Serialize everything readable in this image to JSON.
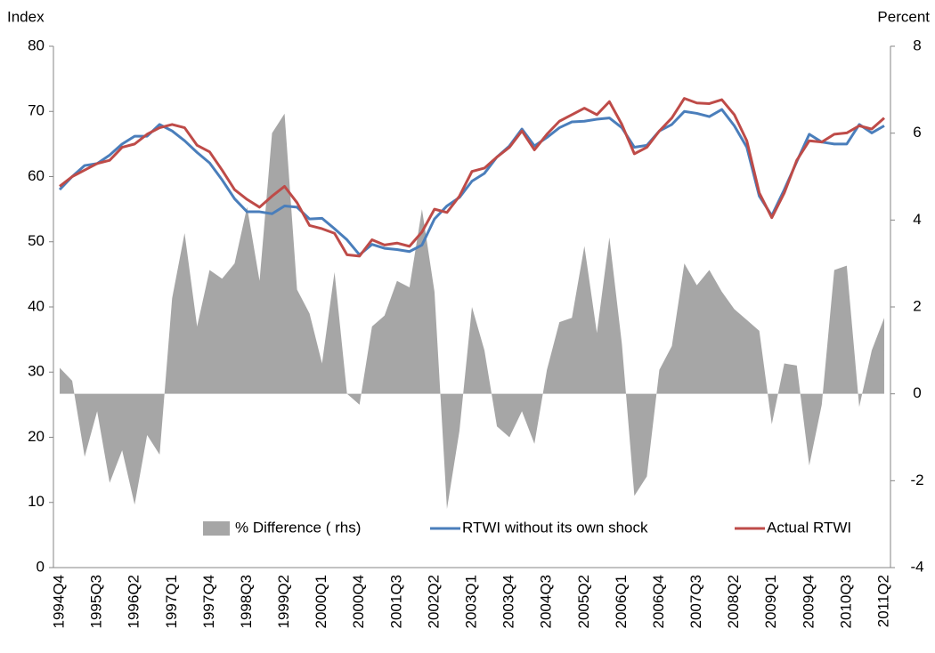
{
  "chart_data": {
    "type": "line",
    "ylabel": "Index",
    "y2label": "Percent",
    "categories": [
      "1994Q4",
      null,
      null,
      "1995Q3",
      null,
      null,
      "1996Q2",
      null,
      null,
      "1997Q1",
      null,
      null,
      "1997Q4",
      null,
      null,
      "1998Q3",
      null,
      null,
      "1999Q2",
      null,
      null,
      "2000Q1",
      null,
      null,
      "2000Q4",
      null,
      null,
      "2001Q3",
      null,
      null,
      "2002Q2",
      null,
      null,
      "2003Q1",
      null,
      null,
      "2003Q4",
      null,
      null,
      "2004Q3",
      null,
      null,
      "2005Q2",
      null,
      null,
      "2006Q1",
      null,
      null,
      "2006Q4",
      null,
      null,
      "2007Q3",
      null,
      null,
      "2008Q2",
      null,
      null,
      "2009Q1",
      null,
      null,
      "2009Q4",
      null,
      null,
      "2010Q3",
      null,
      null,
      "2011Q2"
    ],
    "series": [
      {
        "name": "% Difference ( rhs)",
        "type": "area",
        "axis": "y2",
        "color": "#a6a6a6",
        "values": [
          0.6,
          0.3,
          -1.45,
          -0.4,
          -2.05,
          -1.3,
          -2.55,
          -0.95,
          -1.4,
          2.2,
          3.7,
          1.55,
          2.85,
          2.65,
          3.0,
          4.3,
          2.6,
          6.0,
          6.45,
          2.4,
          1.85,
          0.7,
          2.8,
          0,
          -0.25,
          1.55,
          1.8,
          2.6,
          2.45,
          4.25,
          2.35,
          -2.65,
          -0.85,
          2.0,
          1.0,
          -0.75,
          -1.0,
          -0.4,
          -1.15,
          0.55,
          1.65,
          1.75,
          3.4,
          1.4,
          3.6,
          1.15,
          -2.35,
          -1.9,
          0.55,
          1.1,
          3.0,
          2.5,
          2.85,
          2.35,
          1.95,
          1.7,
          1.45,
          -0.7,
          0.7,
          0.65,
          -1.65,
          -0.25,
          2.85,
          2.95,
          -0.3,
          1.0,
          1.75
        ]
      },
      {
        "name": "RTWI without its own shock",
        "type": "line",
        "color": "#4a7ebb",
        "values": [
          58,
          60,
          61.7,
          62,
          63.3,
          65,
          66.2,
          66.2,
          68,
          67,
          65.5,
          63.7,
          62.1,
          59.5,
          56.6,
          54.6,
          54.6,
          54.3,
          55.5,
          55.3,
          53.5,
          53.6,
          52,
          50.3,
          48,
          49.6,
          49,
          48.8,
          48.5,
          49.5,
          53.5,
          55.5,
          56.8,
          59.3,
          60.5,
          63,
          64.7,
          67.3,
          64.7,
          66,
          67.5,
          68.4,
          68.5,
          68.8,
          69,
          67.5,
          64.5,
          64.8,
          67,
          68,
          70,
          69.7,
          69.2,
          70.3,
          67.8,
          64.5,
          57,
          54,
          58,
          62.3,
          66.5,
          65.3,
          65,
          65,
          68,
          66.7,
          67.8
        ]
      },
      {
        "name": "Actual RTWI",
        "type": "line",
        "color": "#be4b48",
        "values": [
          58.5,
          60,
          61,
          62,
          62.5,
          64.5,
          65,
          66.5,
          67.5,
          68,
          67.5,
          64.8,
          63.8,
          61,
          58,
          56.5,
          55.3,
          57,
          58.5,
          56,
          52.5,
          52,
          51.3,
          48,
          47.8,
          50.3,
          49.5,
          49.8,
          49.3,
          51.5,
          55,
          54.5,
          57,
          60.8,
          61.3,
          63,
          64.5,
          67,
          64.1,
          66.5,
          68.5,
          69.5,
          70.5,
          69.5,
          71.5,
          68,
          63.5,
          64.5,
          67,
          69,
          72,
          71.3,
          71.2,
          71.8,
          69.5,
          65.5,
          57.5,
          53.7,
          57.5,
          62.5,
          65.5,
          65.3,
          66.5,
          66.7,
          67.8,
          67.3,
          69
        ]
      }
    ],
    "ylim": [
      0,
      80
    ],
    "yticks": [
      0,
      10,
      20,
      30,
      40,
      50,
      60,
      70,
      80
    ],
    "y2lim": [
      -4,
      8
    ],
    "y2ticks": [
      -4,
      -2,
      0,
      2,
      4,
      6,
      8
    ],
    "grid": false,
    "legend": "bottom"
  }
}
